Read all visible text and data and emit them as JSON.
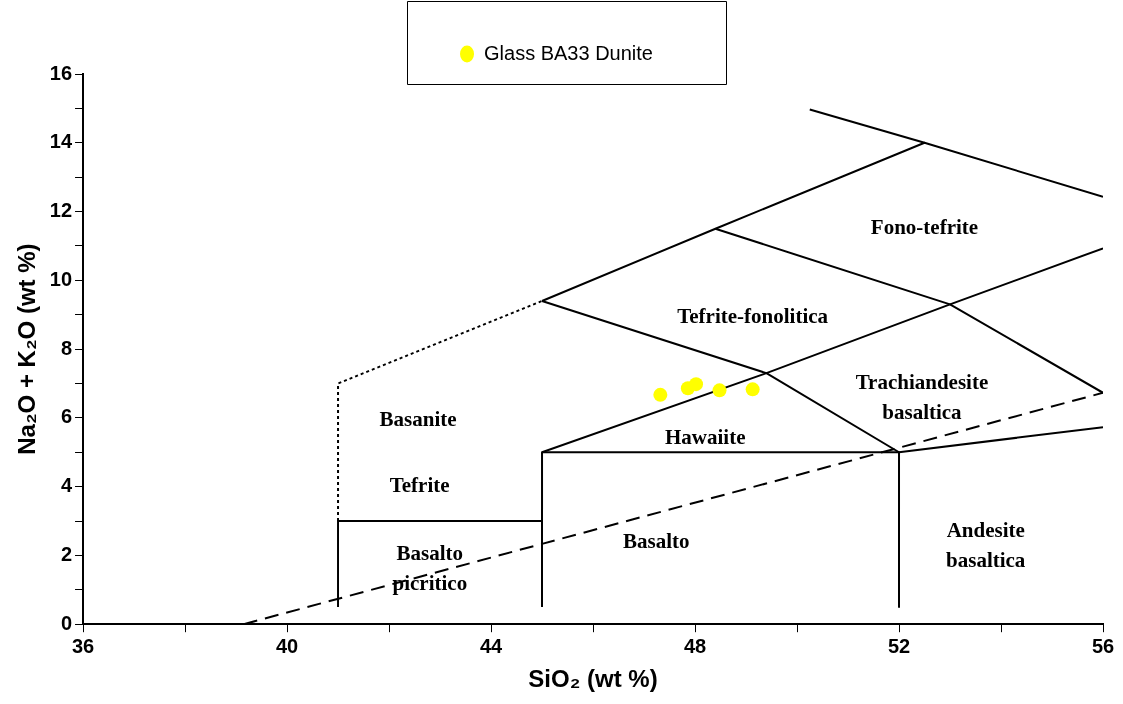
{
  "chart_data": {
    "type": "scatter",
    "xlabel": "SiO₂ (wt %)",
    "ylabel": "Na₂O + K₂O (wt %)",
    "xlim": [
      36,
      56
    ],
    "xticks": [
      36,
      {
        "value": 38,
        "label": null
      },
      40,
      {
        "value": 42,
        "label": null
      },
      44,
      {
        "value": 46,
        "label": null
      },
      48,
      {
        "value": 50,
        "label": null
      },
      52,
      {
        "value": 54,
        "label": null
      },
      56
    ],
    "ylim": [
      0,
      16
    ],
    "yticks": [
      0,
      {
        "value": 1,
        "label": null
      },
      2,
      {
        "value": 3,
        "label": null
      },
      4,
      {
        "value": 5,
        "label": null
      },
      6,
      {
        "value": 7,
        "label": null
      },
      8,
      {
        "value": 9,
        "label": null
      },
      10,
      {
        "value": 11,
        "label": null
      },
      12,
      {
        "value": 13,
        "label": null
      },
      14,
      {
        "value": 15,
        "label": null
      },
      16
    ],
    "grid": false,
    "legend": "top",
    "marker": "circle",
    "series": [
      {
        "name": "Glass BA33 Dunite",
        "color": "#ffff00",
        "x": [
          47.32,
          47.86,
          48.02,
          48.48,
          49.13
        ],
        "values": [
          6.67,
          6.86,
          6.98,
          6.8,
          6.83
        ]
      },
      {
        "type": "line",
        "color": "#000000",
        "line_style": "dotted",
        "marker": "none",
        "x": [
          41,
          41,
          45
        ],
        "values": [
          3,
          7,
          9.4
        ]
      },
      {
        "type": "line",
        "color": "#000000",
        "line_style": "solid",
        "marker": "none",
        "x": [
          41,
          41,
          45
        ],
        "values": [
          0.5,
          3,
          3
        ]
      },
      {
        "type": "line",
        "color": "#000000",
        "line_style": "solid",
        "marker": "none",
        "x": [
          45,
          45,
          52,
          52
        ],
        "values": [
          0.5,
          5,
          5,
          0.5
        ]
      },
      {
        "type": "line",
        "color": "#000000",
        "line_style": "solid",
        "marker": "none",
        "x": [
          45,
          49.4,
          53,
          56
        ],
        "values": [
          5,
          7.3,
          9.3,
          10.93
        ]
      },
      {
        "type": "line",
        "color": "#000000",
        "line_style": "solid",
        "marker": "none",
        "x": [
          45,
          49.4,
          52,
          56
        ],
        "values": [
          9.4,
          7.3,
          5,
          5.73
        ]
      },
      {
        "type": "line",
        "color": "#000000",
        "line_style": "solid",
        "marker": "none",
        "x": [
          45,
          48.4,
          52.5,
          56
        ],
        "values": [
          9.4,
          11.5,
          14,
          12.43
        ]
      },
      {
        "type": "line",
        "color": "#000000",
        "line_style": "solid",
        "marker": "none",
        "x": [
          48.4,
          53,
          56
        ],
        "values": [
          11.5,
          9.3,
          6.73
        ]
      },
      {
        "type": "line",
        "color": "#000000",
        "line_style": "solid",
        "marker": "none",
        "x": [
          50.25,
          52.5
        ],
        "values": [
          14.97,
          14
        ]
      },
      {
        "type": "line",
        "color": "#000000",
        "line_style": "dashed",
        "marker": "none",
        "x": [
          39.15,
          56
        ],
        "values": [
          0,
          6.73
        ]
      }
    ],
    "annotations": [
      "Fono-tefrite",
      "Tefrite-fonolitica",
      "Trachiandesite\nbasaltica",
      "Basanite",
      "Hawaiite",
      "Tefrite",
      "Basalto",
      "Basalto\npicritico",
      "Andesite\nbasaltica"
    ]
  }
}
